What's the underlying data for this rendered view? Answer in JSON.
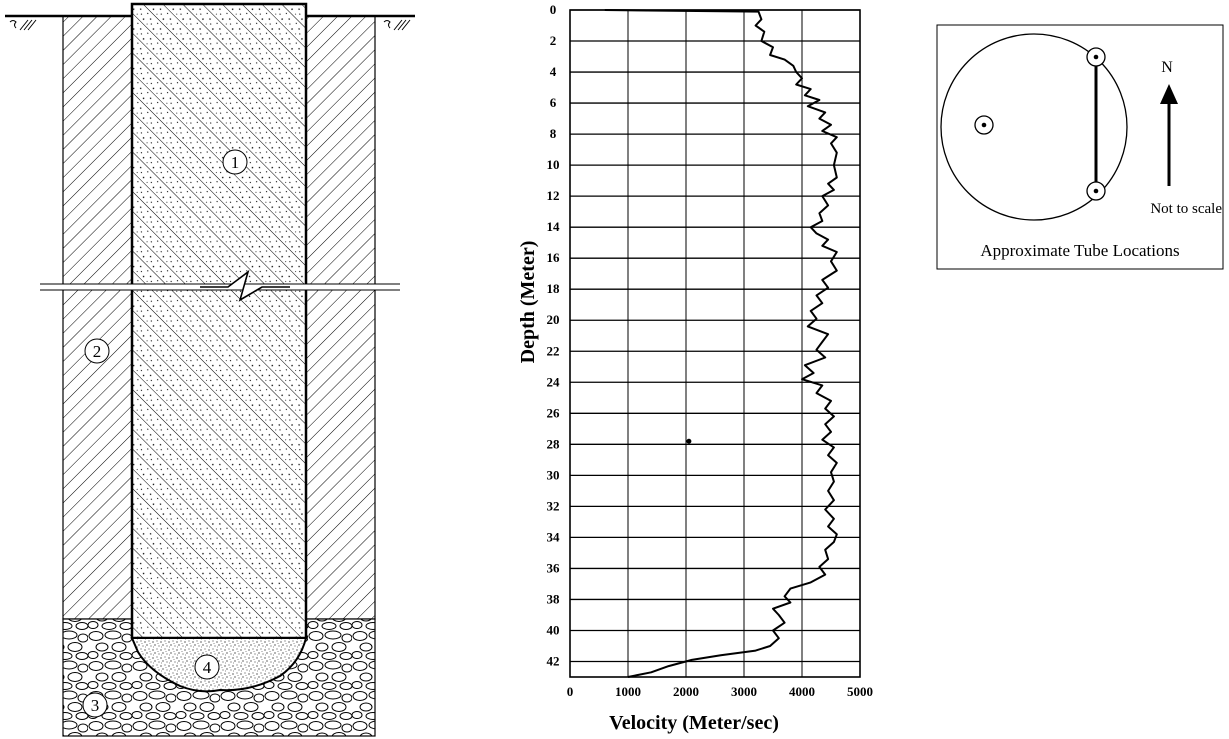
{
  "shaft": {
    "labels": [
      "1",
      "2",
      "3",
      "4"
    ]
  },
  "chart_data": {
    "type": "line",
    "xlabel": "Velocity (Meter/sec)",
    "ylabel": "Depth (Meter)",
    "xlim": [
      0,
      5000
    ],
    "ylim": [
      0,
      43
    ],
    "y_inverted": true,
    "xticks": [
      0,
      1000,
      2000,
      3000,
      4000,
      5000
    ],
    "yticks": [
      0,
      2,
      4,
      6,
      8,
      10,
      12,
      14,
      16,
      18,
      20,
      22,
      24,
      26,
      28,
      30,
      32,
      34,
      36,
      38,
      40,
      42
    ],
    "grid": true,
    "series": [
      {
        "points": [
          [
            600,
            0.0
          ],
          [
            3250,
            0.1
          ],
          [
            3300,
            0.6
          ],
          [
            3200,
            1.0
          ],
          [
            3350,
            1.4
          ],
          [
            3300,
            2.0
          ],
          [
            3500,
            2.4
          ],
          [
            3450,
            2.9
          ],
          [
            3700,
            3.2
          ],
          [
            3850,
            3.6
          ],
          [
            3900,
            4.0
          ],
          [
            4000,
            4.4
          ],
          [
            3900,
            4.8
          ],
          [
            4150,
            5.1
          ],
          [
            4050,
            5.5
          ],
          [
            4300,
            5.8
          ],
          [
            4100,
            6.2
          ],
          [
            4400,
            6.6
          ],
          [
            4300,
            7.0
          ],
          [
            4500,
            7.4
          ],
          [
            4350,
            7.8
          ],
          [
            4600,
            8.2
          ],
          [
            4500,
            8.6
          ],
          [
            4600,
            9.2
          ],
          [
            4550,
            10.0
          ],
          [
            4600,
            10.8
          ],
          [
            4450,
            11.2
          ],
          [
            4550,
            11.6
          ],
          [
            4350,
            12.0
          ],
          [
            4450,
            12.6
          ],
          [
            4300,
            13.1
          ],
          [
            4350,
            13.6
          ],
          [
            4150,
            14.0
          ],
          [
            4250,
            14.4
          ],
          [
            4450,
            14.8
          ],
          [
            4350,
            15.2
          ],
          [
            4600,
            15.6
          ],
          [
            4500,
            16.2
          ],
          [
            4600,
            16.8
          ],
          [
            4350,
            17.4
          ],
          [
            4450,
            17.9
          ],
          [
            4250,
            18.4
          ],
          [
            4350,
            18.9
          ],
          [
            4150,
            19.4
          ],
          [
            4250,
            19.9
          ],
          [
            4100,
            20.4
          ],
          [
            4450,
            20.9
          ],
          [
            4350,
            21.4
          ],
          [
            4250,
            21.9
          ],
          [
            4400,
            22.4
          ],
          [
            4050,
            22.9
          ],
          [
            4200,
            23.4
          ],
          [
            4000,
            23.8
          ],
          [
            4350,
            24.2
          ],
          [
            4250,
            24.7
          ],
          [
            4500,
            25.2
          ],
          [
            4400,
            25.7
          ],
          [
            4550,
            26.2
          ],
          [
            4400,
            26.7
          ],
          [
            4500,
            27.2
          ],
          [
            4350,
            27.7
          ],
          [
            4550,
            28.2
          ],
          [
            4450,
            28.7
          ],
          [
            4600,
            29.2
          ],
          [
            4500,
            29.8
          ],
          [
            4550,
            30.4
          ],
          [
            4450,
            31.0
          ],
          [
            4550,
            31.6
          ],
          [
            4400,
            32.2
          ],
          [
            4550,
            32.8
          ],
          [
            4450,
            33.3
          ],
          [
            4600,
            33.8
          ],
          [
            4550,
            34.3
          ],
          [
            4400,
            34.8
          ],
          [
            4450,
            35.4
          ],
          [
            4300,
            35.9
          ],
          [
            4400,
            36.4
          ],
          [
            4150,
            36.9
          ],
          [
            3800,
            37.3
          ],
          [
            3700,
            37.8
          ],
          [
            3800,
            38.2
          ],
          [
            3500,
            38.6
          ],
          [
            3600,
            39.0
          ],
          [
            3700,
            39.5
          ],
          [
            3500,
            40.0
          ],
          [
            3600,
            40.5
          ],
          [
            3450,
            41.0
          ],
          [
            3200,
            41.3
          ],
          [
            2600,
            41.6
          ],
          [
            2100,
            41.9
          ],
          [
            1700,
            42.3
          ],
          [
            1400,
            42.7
          ],
          [
            1000,
            43.0
          ]
        ]
      }
    ],
    "annotations": [
      {
        "x": 2050,
        "y": 27.8,
        "kind": "dot"
      }
    ]
  },
  "legend": {
    "direction_label": "N",
    "scale_note": "Not to scale",
    "caption": "Approximate Tube Locations"
  }
}
